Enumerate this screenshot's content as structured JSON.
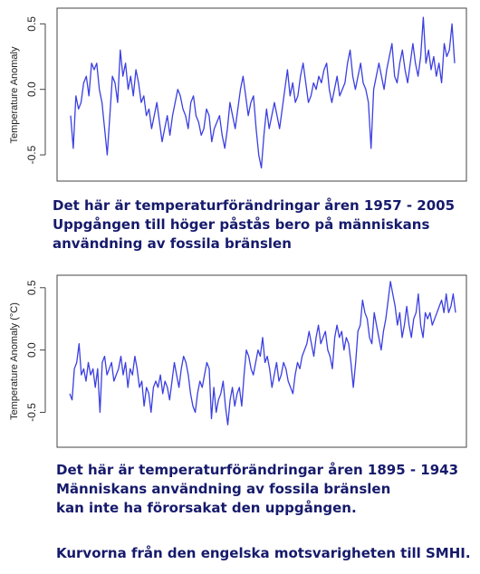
{
  "charts": [
    {
      "ylabel": "Temperature Anomaly",
      "caption": [
        "Det här är temperaturförändringar åren 1957 - 2005",
        "Uppgången till höger påstås bero på människans",
        "användning av fossila bränslen"
      ]
    },
    {
      "ylabel": "Temperature Anomaly (°C)",
      "caption": [
        "Det här är temperaturförändringar åren 1895 - 1943",
        "Människans användning av fossila bränslen",
        "kan inte ha förorsakat den uppgången."
      ]
    }
  ],
  "footer": "Kurvorna från den engelska motsvarigheten till SMHI.",
  "colors": {
    "line": "#3b3fe0",
    "text": "#161a6b"
  },
  "chart_data": [
    {
      "type": "line",
      "ylabel": "Temperature Anomaly",
      "ylim": [
        -0.7,
        0.62
      ],
      "yticks": [
        -0.5,
        0.0,
        0.5
      ],
      "ytick_labels": [
        "-0.5",
        "0.0",
        "0.5"
      ],
      "grid": false,
      "series": [
        {
          "values": [
            -0.2,
            -0.45,
            -0.05,
            -0.15,
            -0.1,
            0.05,
            0.1,
            -0.05,
            0.2,
            0.15,
            0.2,
            0.0,
            -0.1,
            -0.3,
            -0.5,
            -0.2,
            0.1,
            0.05,
            -0.1,
            0.3,
            0.1,
            0.2,
            0.0,
            0.1,
            -0.05,
            0.15,
            0.05,
            -0.1,
            -0.05,
            -0.2,
            -0.15,
            -0.3,
            -0.2,
            -0.1,
            -0.25,
            -0.4,
            -0.3,
            -0.2,
            -0.35,
            -0.2,
            -0.1,
            0.0,
            -0.05,
            -0.15,
            -0.2,
            -0.3,
            -0.1,
            -0.05,
            -0.2,
            -0.25,
            -0.35,
            -0.3,
            -0.15,
            -0.2,
            -0.4,
            -0.3,
            -0.25,
            -0.2,
            -0.35,
            -0.45,
            -0.3,
            -0.1,
            -0.2,
            -0.3,
            -0.15,
            0.0,
            0.1,
            -0.05,
            -0.2,
            -0.1,
            -0.05,
            -0.3,
            -0.5,
            -0.6,
            -0.35,
            -0.15,
            -0.3,
            -0.2,
            -0.1,
            -0.2,
            -0.3,
            -0.15,
            0.0,
            0.15,
            -0.05,
            0.05,
            -0.1,
            -0.05,
            0.1,
            0.2,
            0.05,
            -0.1,
            -0.05,
            0.05,
            0.0,
            0.1,
            0.05,
            0.15,
            0.2,
            0.0,
            -0.1,
            0.0,
            0.1,
            -0.05,
            0.0,
            0.05,
            0.2,
            0.3,
            0.1,
            0.0,
            0.1,
            0.2,
            0.05,
            0.0,
            -0.1,
            -0.45,
            0.0,
            0.1,
            0.2,
            0.1,
            0.0,
            0.15,
            0.25,
            0.35,
            0.1,
            0.05,
            0.2,
            0.3,
            0.15,
            0.05,
            0.2,
            0.35,
            0.2,
            0.1,
            0.25,
            0.55,
            0.2,
            0.3,
            0.15,
            0.25,
            0.1,
            0.2,
            0.05,
            0.35,
            0.25,
            0.3,
            0.5,
            0.2
          ]
        }
      ]
    },
    {
      "type": "line",
      "ylabel": "Temperature Anomaly (°C)",
      "ylim": [
        -0.78,
        0.6
      ],
      "yticks": [
        -0.5,
        0.0,
        0.5
      ],
      "ytick_labels": [
        "-0.5",
        "0.0",
        "0.5"
      ],
      "grid": false,
      "series": [
        {
          "values": [
            -0.35,
            -0.4,
            -0.15,
            -0.1,
            0.05,
            -0.2,
            -0.15,
            -0.25,
            -0.1,
            -0.2,
            -0.15,
            -0.3,
            -0.15,
            -0.5,
            -0.1,
            -0.05,
            -0.2,
            -0.15,
            -0.1,
            -0.25,
            -0.2,
            -0.15,
            -0.05,
            -0.2,
            -0.1,
            -0.3,
            -0.15,
            -0.2,
            -0.05,
            -0.15,
            -0.3,
            -0.25,
            -0.45,
            -0.3,
            -0.35,
            -0.5,
            -0.3,
            -0.25,
            -0.3,
            -0.2,
            -0.35,
            -0.25,
            -0.3,
            -0.4,
            -0.25,
            -0.1,
            -0.2,
            -0.3,
            -0.15,
            -0.05,
            -0.1,
            -0.2,
            -0.35,
            -0.45,
            -0.5,
            -0.35,
            -0.25,
            -0.3,
            -0.2,
            -0.1,
            -0.15,
            -0.55,
            -0.3,
            -0.5,
            -0.4,
            -0.35,
            -0.25,
            -0.45,
            -0.6,
            -0.4,
            -0.3,
            -0.45,
            -0.35,
            -0.3,
            -0.45,
            -0.2,
            0.0,
            -0.05,
            -0.15,
            -0.2,
            -0.1,
            0.0,
            -0.05,
            0.1,
            -0.1,
            -0.05,
            -0.15,
            -0.3,
            -0.2,
            -0.1,
            -0.25,
            -0.2,
            -0.1,
            -0.15,
            -0.25,
            -0.3,
            -0.35,
            -0.2,
            -0.1,
            -0.15,
            -0.05,
            0.0,
            0.05,
            0.15,
            0.05,
            -0.05,
            0.1,
            0.2,
            0.05,
            0.1,
            0.15,
            0.0,
            -0.05,
            -0.15,
            0.1,
            0.2,
            0.1,
            0.15,
            0.0,
            0.1,
            0.05,
            -0.1,
            -0.3,
            -0.1,
            0.15,
            0.2,
            0.4,
            0.3,
            0.25,
            0.1,
            0.05,
            0.3,
            0.2,
            0.1,
            0.0,
            0.15,
            0.25,
            0.4,
            0.55,
            0.45,
            0.35,
            0.2,
            0.3,
            0.1,
            0.2,
            0.35,
            0.2,
            0.1,
            0.25,
            0.3,
            0.45,
            0.2,
            0.1,
            0.3,
            0.25,
            0.3,
            0.2,
            0.25,
            0.3,
            0.35,
            0.4,
            0.3,
            0.45,
            0.3,
            0.35,
            0.45,
            0.3
          ]
        }
      ]
    }
  ]
}
